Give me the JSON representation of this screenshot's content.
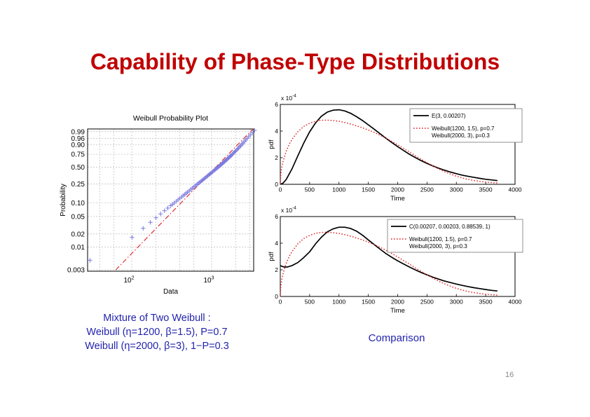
{
  "slide": {
    "title": "Capability of Phase-Type Distributions",
    "title_color": "#c00000",
    "page_number": "16"
  },
  "captions": {
    "text_color": "#2323ae",
    "mixture_heading": "Mixture of Two Weibull :",
    "mixture_line1": "Weibull (η=1200, β=1.5), P=0.7",
    "mixture_line2": "Weibull (η=2000, β=3), 1−P=0.3",
    "comparison": "Comparison"
  },
  "chart_data": [
    {
      "id": "prob",
      "type": "scatter",
      "title": "Weibull Probability Plot",
      "xlabel": "Data",
      "ylabel": "Probability",
      "xscale": "log",
      "yscale": "weibull-probability",
      "grid": true,
      "xlim": [
        28,
        3360
      ],
      "plim": [
        0.0028,
        0.995
      ],
      "xticks": [
        {
          "value": 100,
          "base": "10",
          "exp": "2"
        },
        {
          "value": 1000,
          "base": "10",
          "exp": "3"
        }
      ],
      "yticks": [
        0.99,
        0.96,
        0.9,
        0.75,
        0.5,
        0.25,
        0.1,
        0.05,
        0.02,
        0.01,
        0.003
      ],
      "ytick_labels": [
        "0.99",
        "0.96",
        "0.90",
        "0.75",
        "0.50",
        "0.25",
        "0.10",
        "0.05",
        "0.02",
        "0.01",
        "0.003"
      ],
      "x_gridlines": [
        40,
        60,
        100,
        200,
        400,
        600,
        1000,
        2000,
        3000
      ],
      "marker": "+",
      "marker_color": "#7b7be0",
      "fit_line": {
        "color": "#e03030",
        "style": "dash-dot",
        "endpoints": [
          [
            63,
            0.003
          ],
          [
            3300,
            0.995
          ]
        ]
      },
      "points": [
        [
          30,
          0.005
        ],
        [
          101,
          0.0168
        ],
        [
          139,
          0.0269
        ],
        [
          171,
          0.0367
        ],
        [
          201,
          0.0466
        ],
        [
          230,
          0.057
        ],
        [
          257,
          0.0668
        ],
        [
          283,
          0.0767
        ],
        [
          308,
          0.0865
        ],
        [
          323,
          0.0926
        ],
        [
          340,
          0.0995
        ],
        [
          360,
          0.1078
        ],
        [
          380,
          0.1164
        ],
        [
          400,
          0.1249
        ],
        [
          420,
          0.1337
        ],
        [
          440,
          0.1426
        ],
        [
          460,
          0.1515
        ],
        [
          480,
          0.1605
        ],
        [
          500,
          0.1696
        ],
        [
          525,
          0.1813
        ],
        [
          550,
          0.193
        ],
        [
          575,
          0.2047
        ],
        [
          600,
          0.2165
        ],
        [
          625,
          0.2284
        ],
        [
          650,
          0.2403
        ],
        [
          675,
          0.2522
        ],
        [
          700,
          0.2642
        ],
        [
          725,
          0.2762
        ],
        [
          750,
          0.2882
        ],
        [
          775,
          0.3003
        ],
        [
          800,
          0.3124
        ],
        [
          825,
          0.3244
        ],
        [
          850,
          0.3365
        ],
        [
          875,
          0.3485
        ],
        [
          900,
          0.3606
        ],
        [
          925,
          0.3725
        ],
        [
          950,
          0.3845
        ],
        [
          975,
          0.3963
        ],
        [
          1000,
          0.4082
        ],
        [
          1030,
          0.4223
        ],
        [
          1060,
          0.4363
        ],
        [
          1090,
          0.4502
        ],
        [
          1120,
          0.4641
        ],
        [
          1150,
          0.4778
        ],
        [
          1180,
          0.4916
        ],
        [
          1210,
          0.5053
        ],
        [
          1240,
          0.5188
        ],
        [
          1270,
          0.5322
        ],
        [
          1300,
          0.5453
        ],
        [
          1330,
          0.5584
        ],
        [
          1360,
          0.5714
        ],
        [
          1390,
          0.5843
        ],
        [
          1420,
          0.5972
        ],
        [
          1450,
          0.6095
        ],
        [
          1480,
          0.6218
        ],
        [
          1510,
          0.6343
        ],
        [
          1540,
          0.6463
        ],
        [
          1570,
          0.6582
        ],
        [
          1600,
          0.6701
        ],
        [
          1640,
          0.6854
        ],
        [
          1680,
          0.7005
        ],
        [
          1720,
          0.7153
        ],
        [
          1760,
          0.7295
        ],
        [
          1800,
          0.7438
        ],
        [
          1850,
          0.7608
        ],
        [
          1900,
          0.7775
        ],
        [
          1950,
          0.793
        ],
        [
          2000,
          0.8082
        ],
        [
          2060,
          0.8253
        ],
        [
          2120,
          0.8415
        ],
        [
          2180,
          0.857
        ],
        [
          2250,
          0.8737
        ],
        [
          2320,
          0.8887
        ],
        [
          2400,
          0.9053
        ],
        [
          2480,
          0.9196
        ],
        [
          2570,
          0.9342
        ],
        [
          2670,
          0.9472
        ],
        [
          2780,
          0.9591
        ],
        [
          2900,
          0.97
        ],
        [
          3050,
          0.979
        ],
        [
          3220,
          0.9866
        ],
        [
          3450,
          0.9927
        ]
      ]
    },
    {
      "id": "pdf1",
      "type": "line",
      "xlabel": "Time",
      "ylabel": "pdf",
      "y_scale_label": {
        "base": "x 10",
        "exp": "-4"
      },
      "y_unit": "1e-4",
      "grid": false,
      "xlim": [
        0,
        4000
      ],
      "ylim": [
        0,
        6
      ],
      "xticks": [
        0,
        500,
        1000,
        1500,
        2000,
        2500,
        3000,
        3500,
        4000
      ],
      "yticks": [
        0,
        2,
        4,
        6
      ],
      "legend_box": [
        202,
        27,
        160,
        48
      ],
      "legend": [
        {
          "label": "E(3, 0.00207)",
          "color": "#000000",
          "style": "solid"
        },
        {
          "label": "Weibull(1200, 1.5), p=0.7",
          "label2": "Weibull(2000, 3), p=0.3",
          "color": "#e02020",
          "style": "dotted"
        }
      ],
      "series": [
        {
          "name": "E(3, 0.00207)",
          "color": "#000000",
          "style": "solid",
          "points": [
            [
              0,
              0
            ],
            [
              50,
              0.1
            ],
            [
              100,
              0.36
            ],
            [
              200,
              1.17
            ],
            [
              300,
              2.15
            ],
            [
              400,
              3.1
            ],
            [
              500,
              3.94
            ],
            [
              600,
              4.61
            ],
            [
              700,
              5.11
            ],
            [
              800,
              5.42
            ],
            [
              900,
              5.57
            ],
            [
              1000,
              5.6
            ],
            [
              1100,
              5.51
            ],
            [
              1200,
              5.33
            ],
            [
              1300,
              5.08
            ],
            [
              1400,
              4.79
            ],
            [
              1500,
              4.47
            ],
            [
              1600,
              4.14
            ],
            [
              1700,
              3.8
            ],
            [
              1800,
              3.46
            ],
            [
              1900,
              3.14
            ],
            [
              2000,
              2.83
            ],
            [
              2100,
              2.54
            ],
            [
              2200,
              2.26
            ],
            [
              2300,
              2.01
            ],
            [
              2400,
              1.78
            ],
            [
              2500,
              1.57
            ],
            [
              2600,
              1.38
            ],
            [
              2700,
              1.21
            ],
            [
              2800,
              1.06
            ],
            [
              2900,
              0.92
            ],
            [
              3000,
              0.8
            ],
            [
              3100,
              0.69
            ],
            [
              3200,
              0.6
            ],
            [
              3300,
              0.52
            ],
            [
              3400,
              0.45
            ],
            [
              3500,
              0.38
            ],
            [
              3600,
              0.33
            ],
            [
              3700,
              0.28
            ]
          ]
        },
        {
          "name": "Weibull(1200, 1.5), p=0.7 + Weibull(2000, 3), p=0.3",
          "color": "#e02020",
          "style": "dotted",
          "points": [
            [
              0,
              0
            ],
            [
              10,
              0.8
            ],
            [
              25,
              1.26
            ],
            [
              50,
              1.77
            ],
            [
              100,
              2.48
            ],
            [
              150,
              2.99
            ],
            [
              200,
              3.38
            ],
            [
              300,
              3.96
            ],
            [
              400,
              4.35
            ],
            [
              500,
              4.59
            ],
            [
              600,
              4.74
            ],
            [
              700,
              4.81
            ],
            [
              800,
              4.82
            ],
            [
              900,
              4.79
            ],
            [
              1000,
              4.73
            ],
            [
              1100,
              4.64
            ],
            [
              1200,
              4.53
            ],
            [
              1300,
              4.39
            ],
            [
              1400,
              4.25
            ],
            [
              1500,
              4.08
            ],
            [
              1600,
              3.9
            ],
            [
              1700,
              3.69
            ],
            [
              1800,
              3.47
            ],
            [
              1900,
              3.22
            ],
            [
              2000,
              2.97
            ],
            [
              2100,
              2.7
            ],
            [
              2200,
              2.43
            ],
            [
              2300,
              2.15
            ],
            [
              2400,
              1.88
            ],
            [
              2500,
              1.62
            ],
            [
              2600,
              1.38
            ],
            [
              2700,
              1.15
            ],
            [
              2800,
              0.95
            ],
            [
              2900,
              0.77
            ],
            [
              3000,
              0.61
            ],
            [
              3100,
              0.48
            ],
            [
              3200,
              0.37
            ],
            [
              3300,
              0.29
            ],
            [
              3400,
              0.22
            ],
            [
              3500,
              0.17
            ],
            [
              3600,
              0.13
            ],
            [
              3700,
              0.1
            ]
          ]
        }
      ]
    },
    {
      "id": "pdf2",
      "type": "line",
      "xlabel": "Time",
      "ylabel": "pdf",
      "y_scale_label": {
        "base": "x 10",
        "exp": "-4"
      },
      "y_unit": "1e-4",
      "grid": false,
      "xlim": [
        0,
        4000
      ],
      "ylim": [
        0,
        6
      ],
      "xticks": [
        0,
        500,
        1000,
        1500,
        2000,
        2500,
        3000,
        3500,
        4000
      ],
      "yticks": [
        0,
        2,
        4,
        6
      ],
      "legend_box": [
        170,
        25,
        193,
        47
      ],
      "legend": [
        {
          "label": "C(0.00207, 0.00203, 0.88539, 1)",
          "color": "#000000",
          "style": "solid"
        },
        {
          "label": "Weibull(1200, 1.5), p=0.7",
          "label2": "Weibull(2000, 3), p=0.3",
          "color": "#e02020",
          "style": "dotted"
        }
      ],
      "series": [
        {
          "name": "C(0.00207, 0.00203, 0.88539, 1)",
          "color": "#000000",
          "style": "solid",
          "points": [
            [
              0,
              2.32
            ],
            [
              30,
              2.26
            ],
            [
              70,
              2.21
            ],
            [
              120,
              2.21
            ],
            [
              200,
              2.32
            ],
            [
              300,
              2.55
            ],
            [
              400,
              2.92
            ],
            [
              500,
              3.35
            ],
            [
              600,
              3.95
            ],
            [
              700,
              4.45
            ],
            [
              800,
              4.85
            ],
            [
              900,
              5.08
            ],
            [
              1000,
              5.2
            ],
            [
              1100,
              5.2
            ],
            [
              1200,
              5.1
            ],
            [
              1300,
              4.9
            ],
            [
              1400,
              4.6
            ],
            [
              1500,
              4.25
            ],
            [
              1600,
              3.9
            ],
            [
              1700,
              3.55
            ],
            [
              1800,
              3.22
            ],
            [
              1900,
              2.94
            ],
            [
              2000,
              2.68
            ],
            [
              2100,
              2.44
            ],
            [
              2200,
              2.21
            ],
            [
              2300,
              2.0
            ],
            [
              2400,
              1.8
            ],
            [
              2500,
              1.62
            ],
            [
              2600,
              1.45
            ],
            [
              2700,
              1.3
            ],
            [
              2800,
              1.16
            ],
            [
              2900,
              1.04
            ],
            [
              3000,
              0.93
            ],
            [
              3100,
              0.83
            ],
            [
              3200,
              0.74
            ],
            [
              3300,
              0.66
            ],
            [
              3400,
              0.59
            ],
            [
              3500,
              0.52
            ],
            [
              3600,
              0.46
            ],
            [
              3700,
              0.41
            ]
          ]
        },
        {
          "name": "Weibull(1200, 1.5), p=0.7 + Weibull(2000, 3), p=0.3",
          "color": "#e02020",
          "style": "dotted",
          "points": [
            [
              0,
              0
            ],
            [
              10,
              0.8
            ],
            [
              25,
              1.26
            ],
            [
              50,
              1.77
            ],
            [
              100,
              2.48
            ],
            [
              150,
              2.99
            ],
            [
              200,
              3.38
            ],
            [
              300,
              3.96
            ],
            [
              400,
              4.35
            ],
            [
              500,
              4.59
            ],
            [
              600,
              4.74
            ],
            [
              700,
              4.81
            ],
            [
              800,
              4.82
            ],
            [
              900,
              4.79
            ],
            [
              1000,
              4.73
            ],
            [
              1100,
              4.64
            ],
            [
              1200,
              4.53
            ],
            [
              1300,
              4.39
            ],
            [
              1400,
              4.25
            ],
            [
              1500,
              4.08
            ],
            [
              1600,
              3.9
            ],
            [
              1700,
              3.69
            ],
            [
              1800,
              3.47
            ],
            [
              1900,
              3.22
            ],
            [
              2000,
              2.97
            ],
            [
              2100,
              2.7
            ],
            [
              2200,
              2.43
            ],
            [
              2300,
              2.15
            ],
            [
              2400,
              1.88
            ],
            [
              2500,
              1.62
            ],
            [
              2600,
              1.38
            ],
            [
              2700,
              1.15
            ],
            [
              2800,
              0.95
            ],
            [
              2900,
              0.77
            ],
            [
              3000,
              0.61
            ],
            [
              3100,
              0.48
            ],
            [
              3200,
              0.37
            ],
            [
              3300,
              0.29
            ],
            [
              3400,
              0.22
            ],
            [
              3500,
              0.17
            ],
            [
              3600,
              0.13
            ],
            [
              3700,
              0.1
            ]
          ]
        }
      ]
    }
  ]
}
